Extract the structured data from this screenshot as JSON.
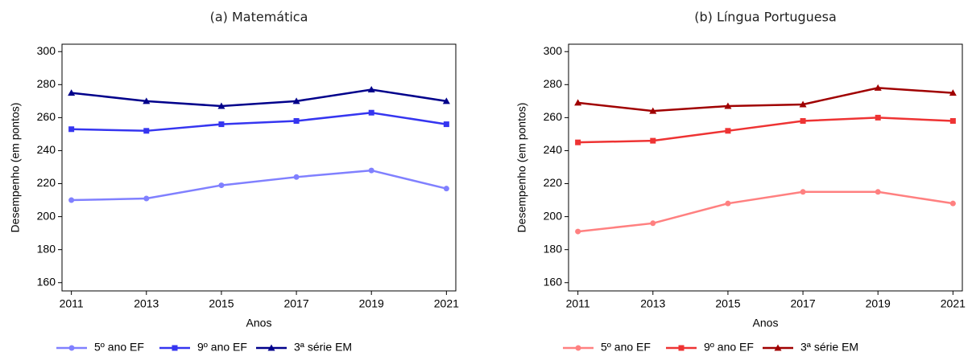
{
  "chart_data": [
    {
      "type": "line",
      "title": "(a) Matemática",
      "x_label": "Anos",
      "y_label": "Desempenho (em pontos)",
      "x": [
        2011,
        2013,
        2015,
        2017,
        2019,
        2021
      ],
      "series": [
        {
          "name": "5º ano EF",
          "color": "#8080ff",
          "marker": "circle",
          "values": [
            210,
            211,
            219,
            224,
            228,
            217
          ]
        },
        {
          "name": "9º ano EF",
          "color": "#3535f0",
          "marker": "square",
          "values": [
            253,
            252,
            256,
            258,
            263,
            256
          ]
        },
        {
          "name": "3ª série EM",
          "color": "#00008b",
          "marker": "triangle",
          "values": [
            275,
            270,
            267,
            270,
            277,
            270
          ]
        }
      ],
      "xlim": [
        2010.75,
        2021.25
      ],
      "xticks": [
        2011,
        2013,
        2015,
        2017,
        2019,
        2021
      ],
      "ylim": [
        155,
        304.5
      ],
      "yticks": [
        160,
        180,
        200,
        220,
        240,
        260,
        280,
        300
      ]
    },
    {
      "type": "line",
      "title": "(b) Língua Portuguesa",
      "x_label": "Anos",
      "y_label": "Desempenho (em pontos)",
      "x": [
        2011,
        2013,
        2015,
        2017,
        2019,
        2021
      ],
      "series": [
        {
          "name": "5º ano EF",
          "color": "#ff8080",
          "marker": "circle",
          "values": [
            191,
            196,
            208,
            215,
            215,
            208
          ]
        },
        {
          "name": "9º ano EF",
          "color": "#ee3333",
          "marker": "square",
          "values": [
            245,
            246,
            252,
            258,
            260,
            258
          ]
        },
        {
          "name": "3ª série EM",
          "color": "#a00000",
          "marker": "triangle",
          "values": [
            269,
            264,
            267,
            268,
            278,
            275
          ]
        }
      ],
      "xlim": [
        2010.75,
        2021.25
      ],
      "xticks": [
        2011,
        2013,
        2015,
        2017,
        2019,
        2021
      ],
      "ylim": [
        155,
        304.5
      ],
      "yticks": [
        160,
        180,
        200,
        220,
        240,
        260,
        280,
        300
      ]
    }
  ]
}
